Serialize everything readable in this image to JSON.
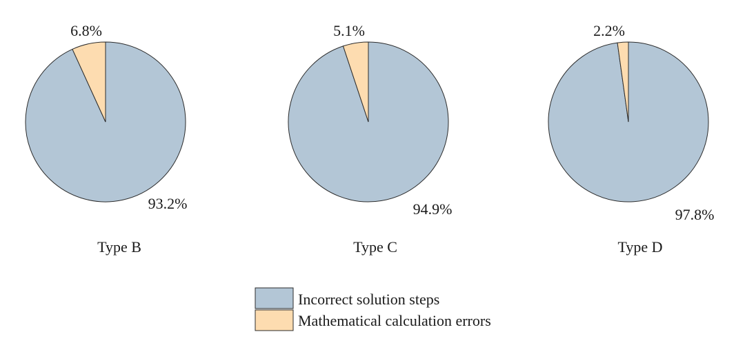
{
  "chart_data": [
    {
      "type": "pie",
      "title": "Type B",
      "labels": [
        "Incorrect solution steps",
        "Mathematical calculation errors"
      ],
      "values": [
        93.2,
        6.8
      ],
      "value_labels": [
        "93.2%",
        "6.8%"
      ]
    },
    {
      "type": "pie",
      "title": "Type C",
      "labels": [
        "Incorrect solution steps",
        "Mathematical calculation errors"
      ],
      "values": [
        94.9,
        5.1
      ],
      "value_labels": [
        "94.9%",
        "5.1%"
      ]
    },
    {
      "type": "pie",
      "title": "Type D",
      "labels": [
        "Incorrect solution steps",
        "Mathematical calculation errors"
      ],
      "values": [
        97.8,
        2.2
      ],
      "value_labels": [
        "97.8%",
        "2.2%"
      ]
    }
  ],
  "legend": {
    "placement": "bottom-center",
    "items": [
      {
        "label": "Incorrect solution steps",
        "color": "#b3c6d6"
      },
      {
        "label": "Mathematical calculation errors",
        "color": "#fddcb0"
      }
    ]
  },
  "colors": {
    "incorrect_solution_steps": "#b3c6d6",
    "mathematical_calculation_errors": "#fddcb0",
    "outline": "#2b2b2b"
  }
}
